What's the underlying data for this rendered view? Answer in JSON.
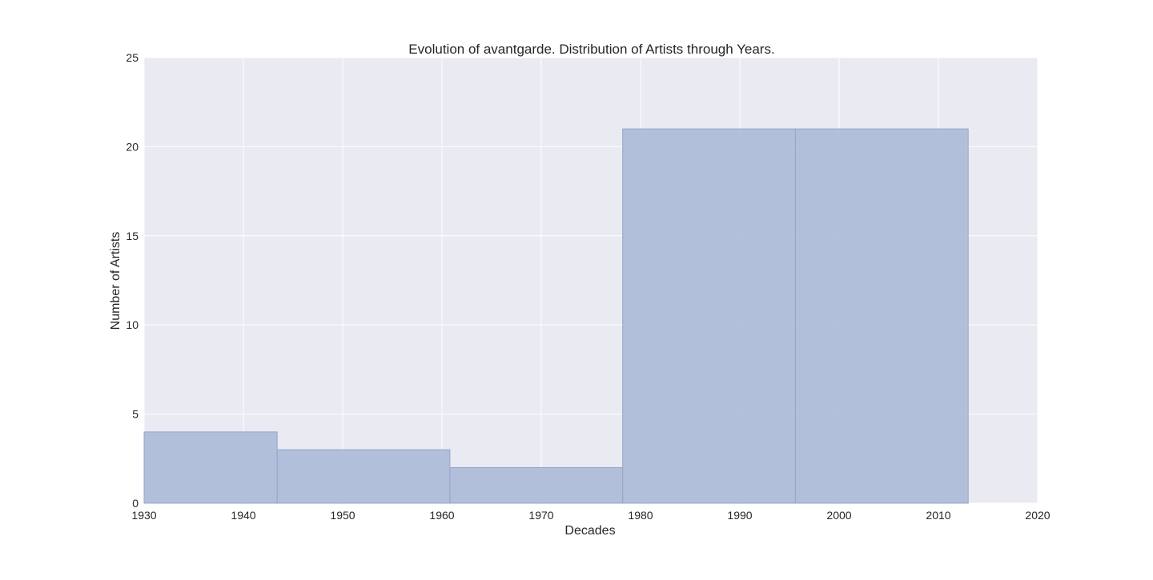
{
  "chart_data": {
    "type": "bar",
    "title": "Evolution of avantgarde. Distribution of Artists through Years.",
    "xlabel": "Decades",
    "ylabel": "Number of Artists",
    "xlim": [
      1930,
      2020
    ],
    "ylim": [
      0,
      25
    ],
    "xticks": [
      "1930",
      "1940",
      "1950",
      "1960",
      "1970",
      "1980",
      "1990",
      "2000",
      "2010",
      "2020"
    ],
    "yticks": [
      "0",
      "5",
      "10",
      "15",
      "20",
      "25"
    ],
    "grid": true,
    "bins": [
      {
        "start": 1930.0,
        "end": 1943.4,
        "value": 4
      },
      {
        "start": 1943.4,
        "end": 1960.8,
        "value": 3
      },
      {
        "start": 1960.8,
        "end": 1978.2,
        "value": 2
      },
      {
        "start": 1978.2,
        "end": 1995.6,
        "value": 21
      },
      {
        "start": 1995.6,
        "end": 2013.0,
        "value": 21
      }
    ],
    "colors": {
      "plot_background": "#eaeaf2",
      "grid": "#ffffff",
      "bar_fill": "#a9b8d6",
      "bar_edge": "#94a6c8"
    }
  }
}
